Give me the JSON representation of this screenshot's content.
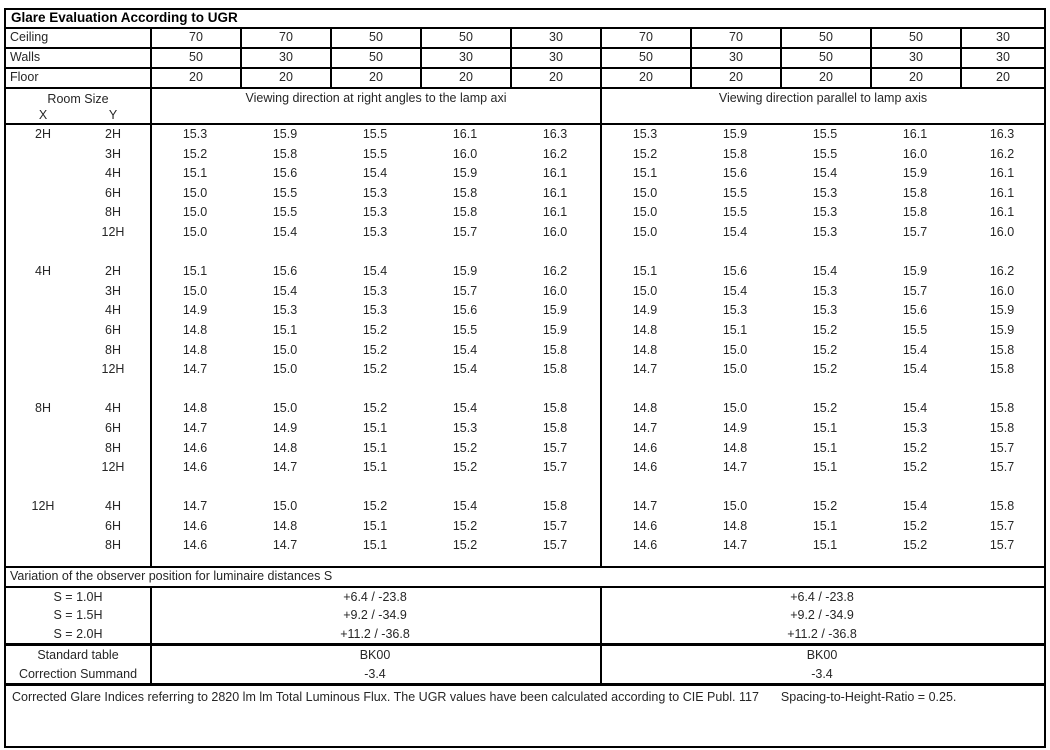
{
  "title": "Glare Evaluation According to UGR",
  "colors": {
    "border": "#000000",
    "text": "#262626",
    "background": "#ffffff"
  },
  "surfaces": {
    "rows": [
      {
        "label": "Ceiling",
        "values": [
          "70",
          "70",
          "50",
          "50",
          "30",
          "70",
          "70",
          "50",
          "50",
          "30"
        ]
      },
      {
        "label": "Walls",
        "values": [
          "50",
          "30",
          "50",
          "30",
          "30",
          "50",
          "30",
          "50",
          "30",
          "30"
        ]
      },
      {
        "label": "Floor",
        "values": [
          "20",
          "20",
          "20",
          "20",
          "20",
          "20",
          "20",
          "20",
          "20",
          "20"
        ]
      }
    ]
  },
  "header": {
    "room_size": "Room Size",
    "x_label": "X",
    "y_label": "Y",
    "left_heading": "Viewing direction at right angles to the lamp axi",
    "right_heading": "Viewing direction parallel to lamp axis"
  },
  "ugr_table": {
    "groups": [
      {
        "x": "2H",
        "rows": [
          {
            "y": "2H",
            "left": [
              "15.3",
              "15.9",
              "15.5",
              "16.1",
              "16.3"
            ],
            "right": [
              "15.3",
              "15.9",
              "15.5",
              "16.1",
              "16.3"
            ]
          },
          {
            "y": "3H",
            "left": [
              "15.2",
              "15.8",
              "15.5",
              "16.0",
              "16.2"
            ],
            "right": [
              "15.2",
              "15.8",
              "15.5",
              "16.0",
              "16.2"
            ]
          },
          {
            "y": "4H",
            "left": [
              "15.1",
              "15.6",
              "15.4",
              "15.9",
              "16.1"
            ],
            "right": [
              "15.1",
              "15.6",
              "15.4",
              "15.9",
              "16.1"
            ]
          },
          {
            "y": "6H",
            "left": [
              "15.0",
              "15.5",
              "15.3",
              "15.8",
              "16.1"
            ],
            "right": [
              "15.0",
              "15.5",
              "15.3",
              "15.8",
              "16.1"
            ]
          },
          {
            "y": "8H",
            "left": [
              "15.0",
              "15.5",
              "15.3",
              "15.8",
              "16.1"
            ],
            "right": [
              "15.0",
              "15.5",
              "15.3",
              "15.8",
              "16.1"
            ]
          },
          {
            "y": "12H",
            "left": [
              "15.0",
              "15.4",
              "15.3",
              "15.7",
              "16.0"
            ],
            "right": [
              "15.0",
              "15.4",
              "15.3",
              "15.7",
              "16.0"
            ]
          }
        ]
      },
      {
        "x": "4H",
        "rows": [
          {
            "y": "2H",
            "left": [
              "15.1",
              "15.6",
              "15.4",
              "15.9",
              "16.2"
            ],
            "right": [
              "15.1",
              "15.6",
              "15.4",
              "15.9",
              "16.2"
            ]
          },
          {
            "y": "3H",
            "left": [
              "15.0",
              "15.4",
              "15.3",
              "15.7",
              "16.0"
            ],
            "right": [
              "15.0",
              "15.4",
              "15.3",
              "15.7",
              "16.0"
            ]
          },
          {
            "y": "4H",
            "left": [
              "14.9",
              "15.3",
              "15.3",
              "15.6",
              "15.9"
            ],
            "right": [
              "14.9",
              "15.3",
              "15.3",
              "15.6",
              "15.9"
            ]
          },
          {
            "y": "6H",
            "left": [
              "14.8",
              "15.1",
              "15.2",
              "15.5",
              "15.9"
            ],
            "right": [
              "14.8",
              "15.1",
              "15.2",
              "15.5",
              "15.9"
            ]
          },
          {
            "y": "8H",
            "left": [
              "14.8",
              "15.0",
              "15.2",
              "15.4",
              "15.8"
            ],
            "right": [
              "14.8",
              "15.0",
              "15.2",
              "15.4",
              "15.8"
            ]
          },
          {
            "y": "12H",
            "left": [
              "14.7",
              "15.0",
              "15.2",
              "15.4",
              "15.8"
            ],
            "right": [
              "14.7",
              "15.0",
              "15.2",
              "15.4",
              "15.8"
            ]
          }
        ]
      },
      {
        "x": "8H",
        "rows": [
          {
            "y": "4H",
            "left": [
              "14.8",
              "15.0",
              "15.2",
              "15.4",
              "15.8"
            ],
            "right": [
              "14.8",
              "15.0",
              "15.2",
              "15.4",
              "15.8"
            ]
          },
          {
            "y": "6H",
            "left": [
              "14.7",
              "14.9",
              "15.1",
              "15.3",
              "15.8"
            ],
            "right": [
              "14.7",
              "14.9",
              "15.1",
              "15.3",
              "15.8"
            ]
          },
          {
            "y": "8H",
            "left": [
              "14.6",
              "14.8",
              "15.1",
              "15.2",
              "15.7"
            ],
            "right": [
              "14.6",
              "14.8",
              "15.1",
              "15.2",
              "15.7"
            ]
          },
          {
            "y": "12H",
            "left": [
              "14.6",
              "14.7",
              "15.1",
              "15.2",
              "15.7"
            ],
            "right": [
              "14.6",
              "14.7",
              "15.1",
              "15.2",
              "15.7"
            ]
          }
        ]
      },
      {
        "x": "12H",
        "rows": [
          {
            "y": "4H",
            "left": [
              "14.7",
              "15.0",
              "15.2",
              "15.4",
              "15.8"
            ],
            "right": [
              "14.7",
              "15.0",
              "15.2",
              "15.4",
              "15.8"
            ]
          },
          {
            "y": "6H",
            "left": [
              "14.6",
              "14.8",
              "15.1",
              "15.2",
              "15.7"
            ],
            "right": [
              "14.6",
              "14.8",
              "15.1",
              "15.2",
              "15.7"
            ]
          },
          {
            "y": "8H",
            "left": [
              "14.6",
              "14.7",
              "15.1",
              "15.2",
              "15.7"
            ],
            "right": [
              "14.6",
              "14.7",
              "15.1",
              "15.2",
              "15.7"
            ]
          }
        ]
      }
    ]
  },
  "variation": {
    "heading": "Variation of the observer position for luminaire distances S",
    "rows": [
      {
        "label": "S = 1.0H",
        "left": "+6.4 / -23.8",
        "right": "+6.4 / -23.8"
      },
      {
        "label": "S = 1.5H",
        "left": "+9.2 / -34.9",
        "right": "+9.2 / -34.9"
      },
      {
        "label": "S = 2.0H",
        "left": "+11.2 / -36.8",
        "right": "+11.2 / -36.8"
      }
    ]
  },
  "summary": {
    "rows": [
      {
        "label": "Standard table",
        "left": "BK00",
        "right": "BK00"
      },
      {
        "label": "Correction Summand",
        "left": "-3.4",
        "right": "-3.4"
      }
    ]
  },
  "footer": {
    "text1": "Corrected Glare Indices referring to 2820 lm lm Total Luminous Flux. The UGR values have been calculated according to CIE Publ. 117",
    "text2": "Spacing-to-Height-Ratio = 0.25."
  }
}
